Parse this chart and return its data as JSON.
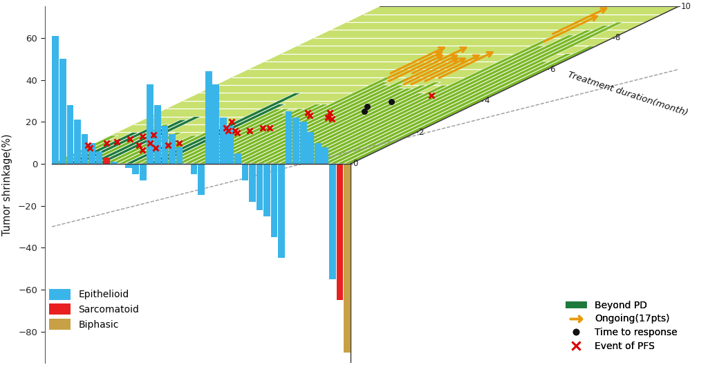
{
  "ylabel": "Tumor shrinkage(%)",
  "xlabel": "Treatment duration(month)",
  "ylim": [
    -95,
    75
  ],
  "yticks": [
    -80,
    -60,
    -40,
    -20,
    0,
    20,
    40,
    60
  ],
  "bg_color": "#ffffff",
  "floor_base_color": "#c8e06e",
  "beyond_pd_color": "#1e7a3c",
  "ongoing_color": "#e8980a",
  "bar_colors": {
    "Epithelioid": "#3ab5ea",
    "Sarcomatoid": "#e82020",
    "Biphasic": "#c8a045"
  },
  "patients": [
    {
      "shrinkage": 61,
      "type": "Epithelioid",
      "duration": 1.8,
      "ongoing": false,
      "beyond_pd": false,
      "time_to_resp": null,
      "pfs_event": true
    },
    {
      "shrinkage": 50,
      "type": "Epithelioid",
      "duration": 1.5,
      "ongoing": false,
      "beyond_pd": false,
      "time_to_resp": null,
      "pfs_event": true
    },
    {
      "shrinkage": 28,
      "type": "Epithelioid",
      "duration": 2.0,
      "ongoing": false,
      "beyond_pd": true,
      "time_to_resp": null,
      "pfs_event": true
    },
    {
      "shrinkage": 21,
      "type": "Epithelioid",
      "duration": 2.2,
      "ongoing": false,
      "beyond_pd": true,
      "time_to_resp": null,
      "pfs_event": true
    },
    {
      "shrinkage": 14,
      "type": "Epithelioid",
      "duration": 2.5,
      "ongoing": false,
      "beyond_pd": false,
      "time_to_resp": null,
      "pfs_event": true
    },
    {
      "shrinkage": 10,
      "type": "Epithelioid",
      "duration": 2.8,
      "ongoing": false,
      "beyond_pd": true,
      "time_to_resp": null,
      "pfs_event": true
    },
    {
      "shrinkage": 6,
      "type": "Epithelioid",
      "duration": 3.0,
      "ongoing": false,
      "beyond_pd": true,
      "time_to_resp": null,
      "pfs_event": true
    },
    {
      "shrinkage": 3,
      "type": "Sarcomatoid",
      "duration": 1.8,
      "ongoing": false,
      "beyond_pd": false,
      "time_to_resp": null,
      "pfs_event": true
    },
    {
      "shrinkage": 1,
      "type": "Epithelioid",
      "duration": 2.0,
      "ongoing": false,
      "beyond_pd": false,
      "time_to_resp": null,
      "pfs_event": true
    },
    {
      "shrinkage": 0,
      "type": "Biphasic",
      "duration": 1.2,
      "ongoing": false,
      "beyond_pd": false,
      "time_to_resp": null,
      "pfs_event": true
    },
    {
      "shrinkage": -2,
      "type": "Epithelioid",
      "duration": 1.5,
      "ongoing": false,
      "beyond_pd": true,
      "time_to_resp": null,
      "pfs_event": true
    },
    {
      "shrinkage": -5,
      "type": "Epithelioid",
      "duration": 1.8,
      "ongoing": false,
      "beyond_pd": false,
      "time_to_resp": null,
      "pfs_event": true
    },
    {
      "shrinkage": -8,
      "type": "Epithelioid",
      "duration": 2.0,
      "ongoing": false,
      "beyond_pd": false,
      "time_to_resp": null,
      "pfs_event": true
    },
    {
      "shrinkage": 38,
      "type": "Epithelioid",
      "duration": 4.5,
      "ongoing": false,
      "beyond_pd": true,
      "time_to_resp": null,
      "pfs_event": true
    },
    {
      "shrinkage": 28,
      "type": "Epithelioid",
      "duration": 3.8,
      "ongoing": false,
      "beyond_pd": true,
      "time_to_resp": null,
      "pfs_event": true
    },
    {
      "shrinkage": 18,
      "type": "Epithelioid",
      "duration": 3.5,
      "ongoing": false,
      "beyond_pd": false,
      "time_to_resp": null,
      "pfs_event": true
    },
    {
      "shrinkage": 14,
      "type": "Epithelioid",
      "duration": 3.5,
      "ongoing": false,
      "beyond_pd": false,
      "time_to_resp": null,
      "pfs_event": true
    },
    {
      "shrinkage": 8,
      "type": "Epithelioid",
      "duration": 3.2,
      "ongoing": false,
      "beyond_pd": false,
      "time_to_resp": null,
      "pfs_event": true
    },
    {
      "shrinkage": 0,
      "type": "Epithelioid",
      "duration": 3.5,
      "ongoing": false,
      "beyond_pd": false,
      "time_to_resp": null,
      "pfs_event": true
    },
    {
      "shrinkage": -5,
      "type": "Epithelioid",
      "duration": 3.8,
      "ongoing": false,
      "beyond_pd": false,
      "time_to_resp": null,
      "pfs_event": true
    },
    {
      "shrinkage": -15,
      "type": "Epithelioid",
      "duration": 3.8,
      "ongoing": false,
      "beyond_pd": false,
      "time_to_resp": null,
      "pfs_event": true
    },
    {
      "shrinkage": 44,
      "type": "Epithelioid",
      "duration": 5.5,
      "ongoing": true,
      "beyond_pd": false,
      "time_to_resp": null,
      "pfs_event": true
    },
    {
      "shrinkage": 38,
      "type": "Epithelioid",
      "duration": 5.2,
      "ongoing": true,
      "beyond_pd": false,
      "time_to_resp": null,
      "pfs_event": true
    },
    {
      "shrinkage": 22,
      "type": "Epithelioid",
      "duration": 5.0,
      "ongoing": true,
      "beyond_pd": false,
      "time_to_resp": null,
      "pfs_event": false
    },
    {
      "shrinkage": 18,
      "type": "Epithelioid",
      "duration": 5.5,
      "ongoing": true,
      "beyond_pd": false,
      "time_to_resp": null,
      "pfs_event": true
    },
    {
      "shrinkage": 5,
      "type": "Epithelioid",
      "duration": 5.0,
      "ongoing": true,
      "beyond_pd": false,
      "time_to_resp": null,
      "pfs_event": true
    },
    {
      "shrinkage": -8,
      "type": "Epithelioid",
      "duration": 4.8,
      "ongoing": true,
      "beyond_pd": false,
      "time_to_resp": null,
      "pfs_event": true
    },
    {
      "shrinkage": -18,
      "type": "Epithelioid",
      "duration": 4.8,
      "ongoing": true,
      "beyond_pd": false,
      "time_to_resp": 3.5,
      "pfs_event": false
    },
    {
      "shrinkage": -22,
      "type": "Epithelioid",
      "duration": 5.0,
      "ongoing": true,
      "beyond_pd": false,
      "time_to_resp": 3.2,
      "pfs_event": false
    },
    {
      "shrinkage": -25,
      "type": "Epithelioid",
      "duration": 5.2,
      "ongoing": true,
      "beyond_pd": false,
      "time_to_resp": 3.8,
      "pfs_event": false
    },
    {
      "shrinkage": -35,
      "type": "Epithelioid",
      "duration": 4.5,
      "ongoing": false,
      "beyond_pd": false,
      "time_to_resp": null,
      "pfs_event": false
    },
    {
      "shrinkage": -45,
      "type": "Epithelioid",
      "duration": 5.0,
      "ongoing": false,
      "beyond_pd": false,
      "time_to_resp": null,
      "pfs_event": false
    },
    {
      "shrinkage": 25,
      "type": "Epithelioid",
      "duration": 8.0,
      "ongoing": true,
      "beyond_pd": false,
      "time_to_resp": null,
      "pfs_event": false
    },
    {
      "shrinkage": 22,
      "type": "Epithelioid",
      "duration": 7.5,
      "ongoing": true,
      "beyond_pd": false,
      "time_to_resp": null,
      "pfs_event": true
    },
    {
      "shrinkage": 20,
      "type": "Epithelioid",
      "duration": 8.2,
      "ongoing": true,
      "beyond_pd": false,
      "time_to_resp": null,
      "pfs_event": false
    },
    {
      "shrinkage": 15,
      "type": "Epithelioid",
      "duration": 8.5,
      "ongoing": true,
      "beyond_pd": false,
      "time_to_resp": null,
      "pfs_event": false
    },
    {
      "shrinkage": 10,
      "type": "Epithelioid",
      "duration": 8.8,
      "ongoing": true,
      "beyond_pd": false,
      "time_to_resp": null,
      "pfs_event": false
    },
    {
      "shrinkage": 8,
      "type": "Epithelioid",
      "duration": 9.0,
      "ongoing": true,
      "beyond_pd": false,
      "time_to_resp": null,
      "pfs_event": false
    },
    {
      "shrinkage": -55,
      "type": "Epithelioid",
      "duration": 6.5,
      "ongoing": false,
      "beyond_pd": false,
      "time_to_resp": null,
      "pfs_event": false
    },
    {
      "shrinkage": -65,
      "type": "Sarcomatoid",
      "duration": 7.0,
      "ongoing": false,
      "beyond_pd": false,
      "time_to_resp": null,
      "pfs_event": false
    },
    {
      "shrinkage": -90,
      "type": "Biphasic",
      "duration": 7.5,
      "ongoing": false,
      "beyond_pd": false,
      "time_to_resp": null,
      "pfs_event": false
    }
  ]
}
